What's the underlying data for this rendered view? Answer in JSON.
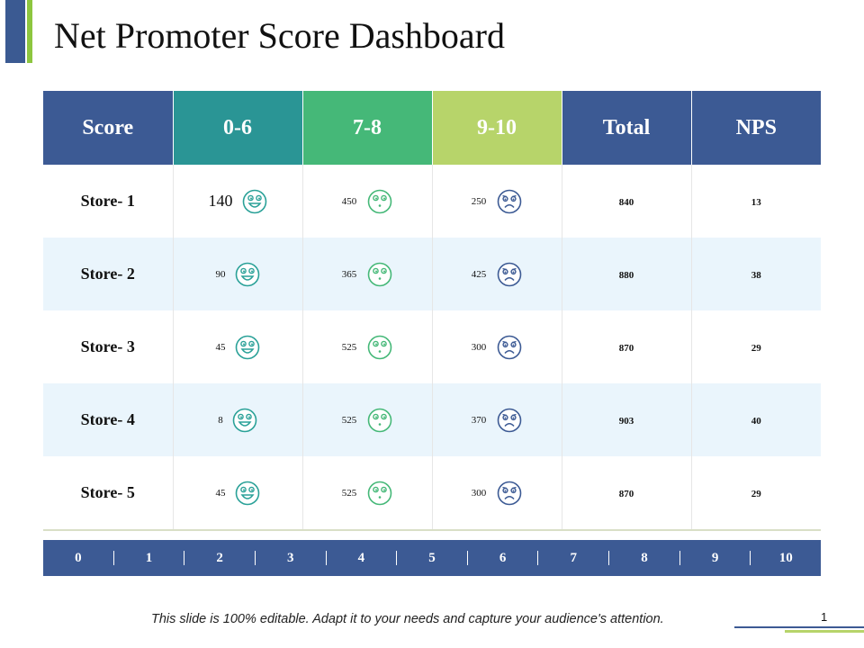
{
  "title": "Net Promoter Score Dashboard",
  "colors": {
    "header_blue": "#3c5a94",
    "range_detractor": "#2a9595",
    "range_passive": "#45b878",
    "range_promoter": "#b7d46a",
    "face_happy": "#2aa198",
    "face_neutral": "#45b878",
    "face_sad": "#3c5a94"
  },
  "table": {
    "headers": [
      "Score",
      "0-6",
      "7-8",
      "9-10",
      "Total",
      "NPS"
    ],
    "rows": [
      {
        "store": "Store- 1",
        "v1": "140",
        "v2": "450",
        "v3": "250",
        "total": "840",
        "nps": "13"
      },
      {
        "store": "Store- 2",
        "v1": "90",
        "v2": "365",
        "v3": "425",
        "total": "880",
        "nps": "38"
      },
      {
        "store": "Store- 3",
        "v1": "45",
        "v2": "525",
        "v3": "300",
        "total": "870",
        "nps": "29"
      },
      {
        "store": "Store- 4",
        "v1": "8",
        "v2": "525",
        "v3": "370",
        "total": "903",
        "nps": "40"
      },
      {
        "store": "Store- 5",
        "v1": "45",
        "v2": "525",
        "v3": "300",
        "total": "870",
        "nps": "29"
      }
    ]
  },
  "icons": {
    "col1": "smiley-face-icon",
    "col2": "neutral-face-icon",
    "col3": "sad-face-icon"
  },
  "scale": [
    "0",
    "1",
    "2",
    "3",
    "4",
    "5",
    "6",
    "7",
    "8",
    "9",
    "10"
  ],
  "footer": "This slide is 100% editable. Adapt it to your needs and capture your audience's attention.",
  "page_number": "1"
}
